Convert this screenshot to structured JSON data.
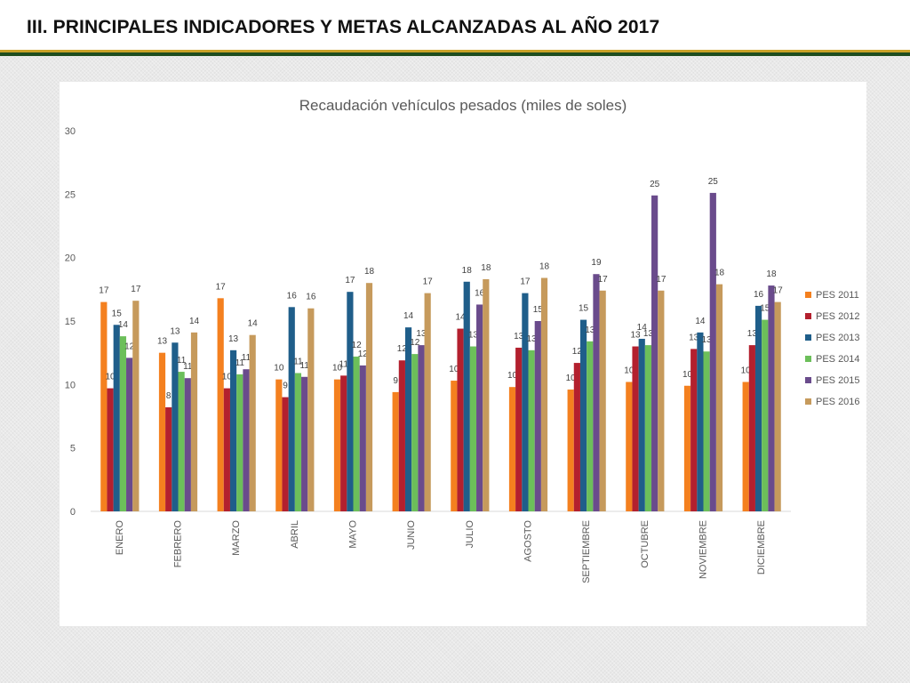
{
  "slide": {
    "title": "III. PRINCIPALES INDICADORES Y METAS ALCANZADAS AL AÑO 2017"
  },
  "colors": {
    "gold_rule": "#c9a227",
    "green_rule": "#1f4e1f"
  },
  "chart_data": {
    "type": "bar",
    "title": "Recaudación vehículos pesados (miles de soles)",
    "xlabel": "",
    "ylabel": "",
    "ylim": [
      0,
      30
    ],
    "yticks": [
      0,
      5,
      10,
      15,
      20,
      25,
      30
    ],
    "grid": false,
    "legend_position": "right",
    "categories": [
      "ENERO",
      "FEBRERO",
      "MARZO",
      "ABRIL",
      "MAYO",
      "JUNIO",
      "JULIO",
      "AGOSTO",
      "SEPTIEMBRE",
      "OCTUBRE",
      "NOVIEMBRE",
      "DICIEMBRE"
    ],
    "series": [
      {
        "name": "PES 2011",
        "color": "#f4801f",
        "values": [
          16.5,
          12.5,
          16.8,
          10.4,
          10.4,
          9.4,
          10.3,
          9.8,
          9.6,
          10.2,
          9.9,
          10.2
        ],
        "labels": [
          "17",
          "13",
          "17",
          "10",
          "10",
          "9",
          "10",
          "10",
          "10",
          "10",
          "10",
          "10"
        ]
      },
      {
        "name": "PES 2012",
        "color": "#b3202e",
        "values": [
          9.7,
          8.2,
          9.7,
          9.0,
          10.7,
          11.9,
          14.4,
          12.9,
          11.7,
          13.0,
          12.8,
          13.1
        ],
        "labels": [
          "10",
          "8",
          "10",
          "9",
          "11",
          "12",
          "14",
          "13",
          "12",
          "13",
          "13",
          "13"
        ]
      },
      {
        "name": "PES 2013",
        "color": "#1f5e8a",
        "values": [
          14.7,
          13.3,
          12.7,
          16.1,
          17.3,
          14.5,
          18.1,
          17.2,
          15.1,
          13.6,
          14.1,
          16.2
        ],
        "labels": [
          "15",
          "13",
          "13",
          "16",
          "17",
          "14",
          "18",
          "17",
          "15",
          "14",
          "14",
          "16"
        ]
      },
      {
        "name": "PES 2014",
        "color": "#6cbf5a",
        "values": [
          13.8,
          11.0,
          10.8,
          10.9,
          12.2,
          12.4,
          13.0,
          12.7,
          13.4,
          13.1,
          12.6,
          15.1
        ],
        "labels": [
          "14",
          "11",
          "11",
          "11",
          "12",
          "12",
          "13",
          "13",
          "13",
          "13",
          "13",
          "15"
        ]
      },
      {
        "name": "PES 2015",
        "color": "#6a4b8c",
        "values": [
          12.1,
          10.5,
          11.2,
          10.6,
          11.5,
          13.1,
          16.3,
          15.0,
          18.7,
          24.9,
          25.1,
          17.8
        ],
        "labels": [
          "12",
          "11",
          "11",
          "11",
          "12",
          "13",
          "16",
          "15",
          "19",
          "25",
          "25",
          "18"
        ]
      },
      {
        "name": "PES 2016",
        "color": "#c69a5c",
        "values": [
          16.6,
          14.1,
          13.9,
          16.0,
          18.0,
          17.2,
          18.3,
          18.4,
          17.4,
          17.4,
          17.9,
          16.5
        ],
        "labels": [
          "17",
          "14",
          "14",
          "16",
          "18",
          "17",
          "18",
          "18",
          "17",
          "17",
          "18",
          "17"
        ]
      }
    ]
  }
}
